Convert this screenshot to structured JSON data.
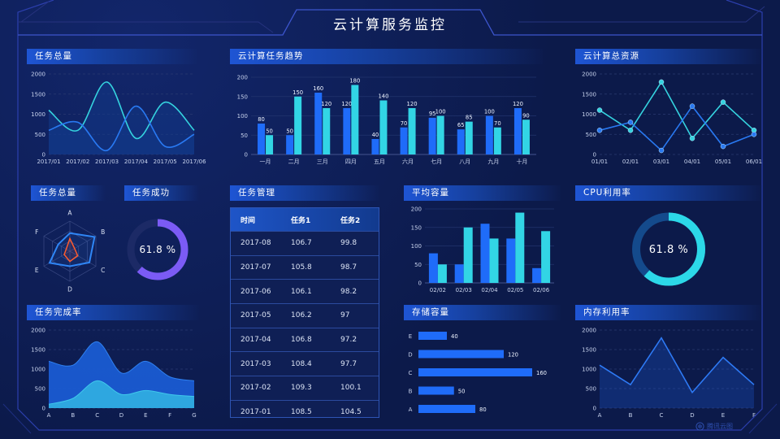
{
  "title": "云计算服务监控",
  "watermark": {
    "label": "腾讯云图"
  },
  "colors": {
    "background": "#0c1a4a",
    "frame": "#2c3fae",
    "header_line": "#3c55cc",
    "panel_header": "#1e55d4",
    "blue": "#1f6cf9",
    "cyan": "#32d5e5",
    "purple": "#7b5bf5",
    "orange": "#ff5b2e",
    "grid": "#2a3a72",
    "tick_text": "#c9d4ee"
  },
  "panels": {
    "p1": {
      "title": "任务总量"
    },
    "p2": {
      "title": "云计算任务趋势"
    },
    "p3": {
      "title": "云计算总资源"
    },
    "p4": {
      "title": "任务总量"
    },
    "p5": {
      "title": "任务成功"
    },
    "p6": {
      "title": "任务管理"
    },
    "p7": {
      "title": "平均容量"
    },
    "p8": {
      "title": "CPU利用率"
    },
    "p9": {
      "title": "任务完成率"
    },
    "p10": {
      "title": "存储容量"
    },
    "p11": {
      "title": "内存利用率"
    }
  },
  "chart_data": [
    {
      "id": "task_total",
      "type": "area",
      "title": "任务总量",
      "x": [
        "2017/01",
        "2017/02",
        "2017/03",
        "2017/04",
        "2017/05",
        "2017/06"
      ],
      "ylim": [
        0,
        2000
      ],
      "yticks": [
        0,
        500,
        1000,
        1500,
        2000
      ],
      "grid": "dashed",
      "smooth": true,
      "series": [
        {
          "name": "series-cyan",
          "color": "#35d3df",
          "values": [
            1100,
            600,
            1800,
            400,
            1300,
            600
          ]
        },
        {
          "name": "series-blue",
          "color": "#2979f2",
          "values": [
            600,
            800,
            100,
            1200,
            200,
            500
          ]
        }
      ]
    },
    {
      "id": "trend",
      "type": "bar",
      "title": "云计算任务趋势",
      "categories": [
        "一月",
        "二月",
        "三月",
        "四月",
        "五月",
        "六月",
        "七月",
        "八月",
        "九月",
        "十月"
      ],
      "ylim": [
        0,
        200
      ],
      "yticks": [
        0,
        50,
        100,
        150,
        200
      ],
      "value_labels": true,
      "series": [
        {
          "name": "任务1",
          "color": "#1f6cf9",
          "values": [
            80,
            50,
            160,
            120,
            40,
            70,
            95,
            65,
            100,
            120
          ]
        },
        {
          "name": "任务2",
          "color": "#32d5e5",
          "values": [
            50,
            150,
            120,
            180,
            140,
            120,
            100,
            85,
            70,
            90
          ]
        }
      ]
    },
    {
      "id": "resource",
      "type": "line",
      "title": "云计算总资源",
      "x": [
        "01/01",
        "02/01",
        "03/01",
        "04/01",
        "05/01",
        "06/01"
      ],
      "ylim": [
        0,
        2000
      ],
      "yticks": [
        0,
        500,
        1000,
        1500,
        2000
      ],
      "grid": "dashed",
      "markers": true,
      "series": [
        {
          "name": "series-cyan",
          "color": "#35d3df",
          "values": [
            1100,
            600,
            1800,
            400,
            1300,
            600
          ]
        },
        {
          "name": "series-blue",
          "color": "#2979f2",
          "values": [
            600,
            800,
            100,
            1200,
            200,
            500
          ]
        }
      ]
    },
    {
      "id": "radar",
      "type": "radar",
      "title": "任务总量",
      "axes": [
        "A",
        "B",
        "C",
        "D",
        "E",
        "F"
      ],
      "max": 100,
      "series": [
        {
          "name": "blue",
          "color": "#2f86f6",
          "values": [
            60,
            95,
            75,
            50,
            78,
            45
          ]
        },
        {
          "name": "orange",
          "color": "#ff5b2e",
          "values": [
            42,
            18,
            30,
            34,
            22,
            14
          ]
        }
      ]
    },
    {
      "id": "success",
      "type": "donut",
      "title": "任务成功",
      "percent": 61.8,
      "label": "61.8 %",
      "color": "#7b5bf5",
      "track": "#1c2a66"
    },
    {
      "id": "table",
      "type": "table",
      "title": "任务管理",
      "columns": [
        "时间",
        "任务1",
        "任务2"
      ],
      "rows": [
        [
          "2017-08",
          "106.7",
          "99.8"
        ],
        [
          "2017-07",
          "105.8",
          "98.7"
        ],
        [
          "2017-06",
          "106.1",
          "98.2"
        ],
        [
          "2017-05",
          "106.2",
          "97"
        ],
        [
          "2017-04",
          "106.8",
          "97.2"
        ],
        [
          "2017-03",
          "108.4",
          "97.7"
        ],
        [
          "2017-02",
          "109.3",
          "100.1"
        ],
        [
          "2017-01",
          "108.5",
          "104.5"
        ]
      ]
    },
    {
      "id": "avg",
      "type": "bar",
      "title": "平均容量",
      "categories": [
        "02/02",
        "02/03",
        "02/04",
        "02/05",
        "02/06"
      ],
      "ylim": [
        0,
        200
      ],
      "yticks": [
        0,
        50,
        100,
        150,
        200
      ],
      "value_labels": false,
      "series": [
        {
          "name": "blue",
          "color": "#1f6cf9",
          "values": [
            80,
            50,
            160,
            120,
            40
          ]
        },
        {
          "name": "cyan",
          "color": "#32d5e5",
          "values": [
            50,
            150,
            120,
            190,
            140
          ]
        }
      ]
    },
    {
      "id": "cpu",
      "type": "donut",
      "title": "CPU利用率",
      "percent": 61.8,
      "label": "61.8 %",
      "color": "#2cd8e8",
      "track": "#144a8c"
    },
    {
      "id": "completion",
      "type": "stacked_area",
      "title": "任务完成率",
      "x": [
        "A",
        "B",
        "C",
        "D",
        "E",
        "F",
        "G"
      ],
      "ylim": [
        0,
        2000
      ],
      "yticks": [
        0,
        500,
        1000,
        1500,
        2000
      ],
      "grid": "dashed",
      "smooth": true,
      "series": [
        {
          "name": "upper",
          "color": "#1a5ad0",
          "edge": "#2f80f0",
          "values": [
            1200,
            1100,
            1700,
            900,
            1200,
            800,
            700
          ]
        },
        {
          "name": "lower",
          "color": "#2fa9e0",
          "edge": "#3fc8ec",
          "values": [
            100,
            250,
            700,
            350,
            450,
            350,
            300
          ]
        }
      ]
    },
    {
      "id": "storage",
      "type": "hbar",
      "title": "存储容量",
      "categories": [
        "E",
        "D",
        "C",
        "B",
        "A"
      ],
      "values": [
        40,
        120,
        160,
        50,
        80
      ],
      "color": "#1f6cf9",
      "xmax": 160
    },
    {
      "id": "memory",
      "type": "line_area",
      "title": "内存利用率",
      "x": [
        "A",
        "B",
        "C",
        "D",
        "E",
        "F"
      ],
      "ylim": [
        0,
        2000
      ],
      "yticks": [
        0,
        500,
        1000,
        1500,
        2000
      ],
      "grid": "dashed",
      "series": [
        {
          "name": "blue",
          "color": "#2e7af5",
          "values": [
            1100,
            600,
            1800,
            400,
            1300,
            600
          ]
        }
      ]
    }
  ]
}
